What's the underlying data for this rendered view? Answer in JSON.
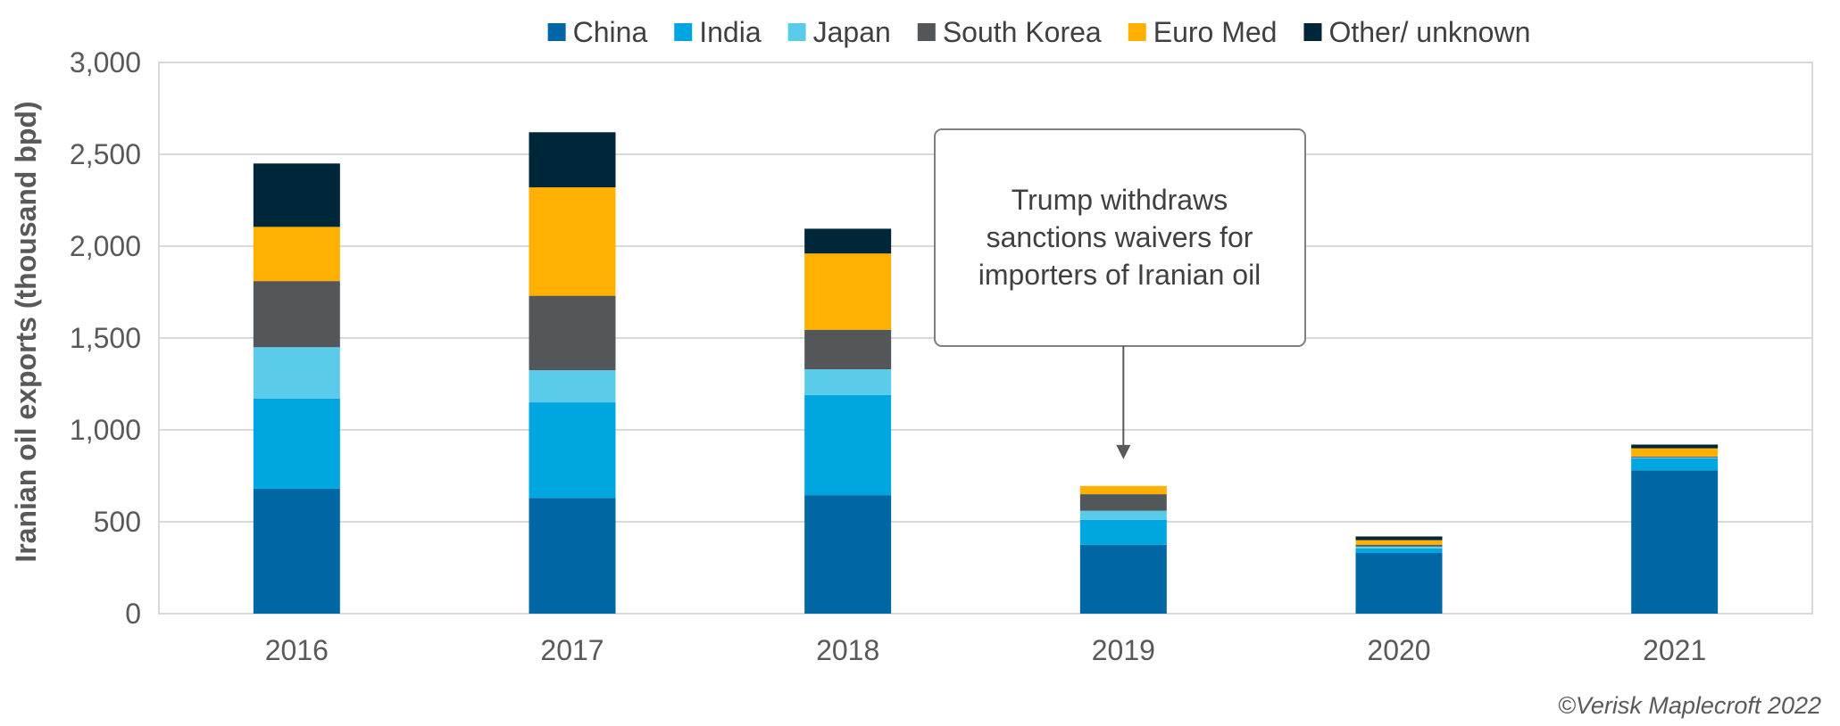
{
  "chart_data": {
    "type": "bar",
    "stacked": true,
    "categories": [
      "2016",
      "2017",
      "2018",
      "2019",
      "2020",
      "2021"
    ],
    "series": [
      {
        "name": "China",
        "color": "#0067A5",
        "values": [
          680,
          630,
          645,
          375,
          330,
          780
        ]
      },
      {
        "name": "India",
        "color": "#00A6DF",
        "values": [
          490,
          520,
          545,
          135,
          25,
          65
        ]
      },
      {
        "name": "Japan",
        "color": "#5BCBEA",
        "values": [
          280,
          175,
          140,
          50,
          10,
          5
        ]
      },
      {
        "name": "South Korea",
        "color": "#54575A",
        "values": [
          360,
          405,
          215,
          90,
          10,
          5
        ]
      },
      {
        "name": "Euro Med",
        "color": "#FFB000",
        "values": [
          295,
          590,
          415,
          45,
          25,
          45
        ]
      },
      {
        "name": "Other/ unknown",
        "color": "#00263A",
        "values": [
          345,
          300,
          135,
          0,
          20,
          20
        ]
      }
    ],
    "ylabel": "Iranian oil exports (thousand bpd)",
    "ylim": [
      0,
      3000
    ],
    "yticks": [
      0,
      500,
      1000,
      1500,
      2000,
      2500,
      3000
    ],
    "ytick_labels": [
      "0",
      "500",
      "1,000",
      "1,500",
      "2,000",
      "2,500",
      "3,000"
    ],
    "grid": true,
    "legend_position": "top",
    "annotation": {
      "lines": [
        "Trump withdraws",
        "sanctions waivers for",
        "importers of Iranian oil"
      ],
      "target_category": "2019"
    },
    "credit": "©Verisk Maplecroft 2022"
  }
}
